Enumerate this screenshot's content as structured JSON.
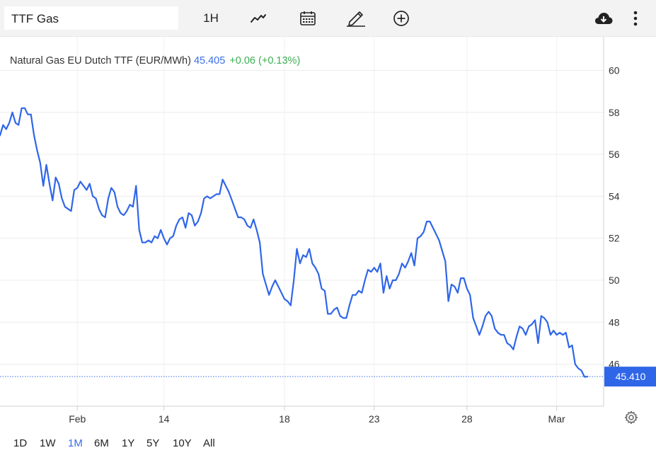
{
  "toolbar": {
    "symbol_value": "TTF Gas",
    "interval_label": "1H",
    "icons": [
      "line-chart-icon",
      "calendar-icon",
      "pencil-icon",
      "plus-circle-icon",
      "cloud-download-icon",
      "more-vertical-icon"
    ]
  },
  "legend": {
    "name": "Natural Gas EU Dutch TTF (EUR/MWh)",
    "price": "45.405",
    "change": "+0.06 (+0.13%)"
  },
  "price_tag": "45.410",
  "colors": {
    "line": "#2f66e8",
    "price_tag": "#2f66e8",
    "change": "#3cae53"
  },
  "ranges": [
    {
      "label": "1D",
      "active": false
    },
    {
      "label": "1W",
      "active": false
    },
    {
      "label": "1M",
      "active": true
    },
    {
      "label": "6M",
      "active": false
    },
    {
      "label": "1Y",
      "active": false
    },
    {
      "label": "5Y",
      "active": false
    },
    {
      "label": "10Y",
      "active": false
    },
    {
      "label": "All",
      "active": false
    }
  ],
  "chart_data": {
    "type": "line",
    "ylim": [
      44.0,
      61.6
    ],
    "y_ticks": [
      46,
      48,
      50,
      52,
      54,
      56,
      58,
      60
    ],
    "x_ticks": [
      {
        "label": "Feb",
        "i": 25
      },
      {
        "label": "14",
        "i": 53
      },
      {
        "label": "18",
        "i": 92
      },
      {
        "label": "23",
        "i": 121
      },
      {
        "label": "28",
        "i": 151
      },
      {
        "label": "Mar",
        "i": 180
      }
    ],
    "x_count": 190,
    "last_value": 45.41,
    "series": [
      {
        "values": [
          56.9,
          57.4,
          57.2,
          57.5,
          58.0,
          57.5,
          57.4,
          58.2,
          58.2,
          57.9,
          57.9,
          56.9,
          56.2,
          55.6,
          54.5,
          55.5,
          54.6,
          53.8,
          54.9,
          54.6,
          53.9,
          53.5,
          53.4,
          53.3,
          54.3,
          54.4,
          54.7,
          54.5,
          54.3,
          54.6,
          54.0,
          53.9,
          53.4,
          53.1,
          53.0,
          53.9,
          54.4,
          54.2,
          53.5,
          53.2,
          53.1,
          53.3,
          53.6,
          53.5,
          54.5,
          52.4,
          51.8,
          51.8,
          51.9,
          51.8,
          52.1,
          52.0,
          52.4,
          52.0,
          51.7,
          52.0,
          52.1,
          52.6,
          52.9,
          53.0,
          52.5,
          53.2,
          53.1,
          52.6,
          52.8,
          53.2,
          53.9,
          54.0,
          53.9,
          54.0,
          54.1,
          54.1,
          54.8,
          54.5,
          54.2,
          53.8,
          53.4,
          53.0,
          53.0,
          52.9,
          52.6,
          52.5,
          52.9,
          52.4,
          51.8,
          50.3,
          49.8,
          49.3,
          49.7,
          50.0,
          49.7,
          49.4,
          49.1,
          49.0,
          48.8,
          50.0,
          51.5,
          50.8,
          51.2,
          51.1,
          51.5,
          50.8,
          50.6,
          50.3,
          49.6,
          49.5,
          48.4,
          48.4,
          48.6,
          48.7,
          48.3,
          48.2,
          48.2,
          48.8,
          49.3,
          49.3,
          49.5,
          49.4,
          50.0,
          50.5,
          50.4,
          50.6,
          50.4,
          50.8,
          49.4,
          50.2,
          49.6,
          50.0,
          50.0,
          50.3,
          50.8,
          50.6,
          50.9,
          51.3,
          50.7,
          52.0,
          52.1,
          52.3,
          52.8,
          52.8,
          52.5,
          52.2,
          51.9,
          51.4,
          50.9,
          49.0,
          49.8,
          49.7,
          49.4,
          50.1,
          50.1,
          49.6,
          49.3,
          48.2,
          47.8,
          47.4,
          47.8,
          48.3,
          48.5,
          48.3,
          47.7,
          47.5,
          47.4,
          47.4,
          47.0,
          46.9,
          46.7,
          47.3,
          47.8,
          47.7,
          47.4,
          47.8,
          47.9,
          48.1,
          47.0,
          48.3,
          48.2,
          48.0,
          47.4,
          47.6,
          47.4,
          47.5,
          47.4,
          47.5,
          46.8,
          46.9,
          46.0,
          45.8,
          45.7,
          45.4,
          45.41
        ]
      }
    ]
  }
}
